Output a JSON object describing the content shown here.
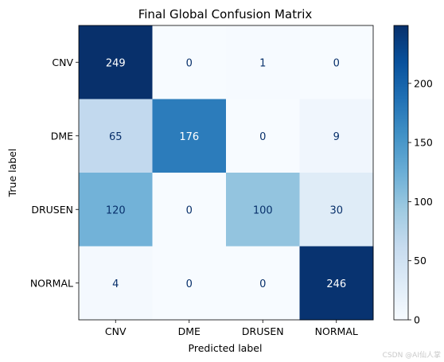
{
  "chart_data": {
    "type": "heatmap",
    "title": "Final Global Confusion Matrix",
    "xlabel": "Predicted label",
    "ylabel": "True label",
    "x_categories": [
      "CNV",
      "DME",
      "DRUSEN",
      "NORMAL"
    ],
    "y_categories": [
      "CNV",
      "DME",
      "DRUSEN",
      "NORMAL"
    ],
    "values": [
      [
        249,
        0,
        1,
        0
      ],
      [
        65,
        176,
        0,
        9
      ],
      [
        120,
        0,
        100,
        30
      ],
      [
        4,
        0,
        0,
        246
      ]
    ],
    "colormap": "Blues",
    "vmin": 0,
    "vmax": 249,
    "colorbar_ticks": [
      0,
      50,
      100,
      150,
      200
    ],
    "colors": {
      "low": "#f7fbff",
      "high": "#08306b",
      "text_light": "#ffffff",
      "text_dark": "#08306b"
    }
  },
  "watermark": "CSDN @AI仙人掌"
}
